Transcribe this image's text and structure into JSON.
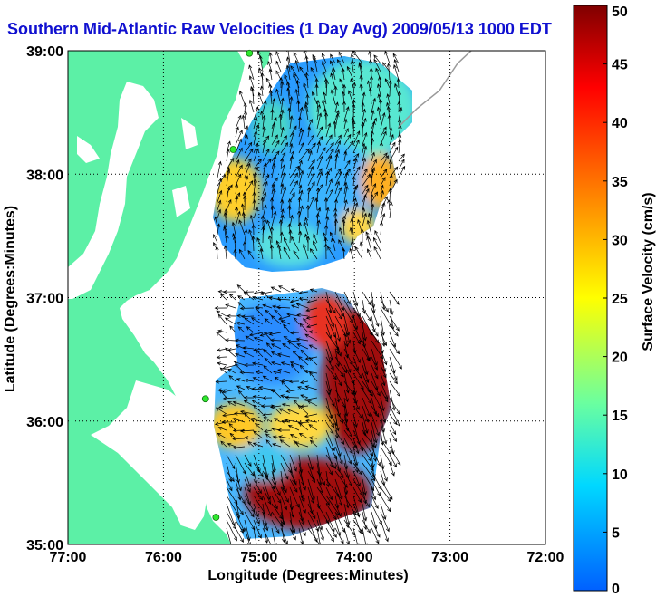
{
  "title": "Southern Mid-Atlantic Raw Velocities (1 Day Avg) 2009/05/13 1000 EDT",
  "map": {
    "xlabel": "Longitude (Degrees:Minutes)",
    "ylabel": "Latitude (Degrees:Minutes)",
    "xlim": [
      -77,
      -72
    ],
    "ylim": [
      35,
      39
    ],
    "x_ticks": [
      {
        "value": -77,
        "label": "77:00"
      },
      {
        "value": -76,
        "label": "76:00"
      },
      {
        "value": -75,
        "label": "75:00"
      },
      {
        "value": -74,
        "label": "74:00"
      },
      {
        "value": -73,
        "label": "73:00"
      },
      {
        "value": -72,
        "label": "72:00"
      }
    ],
    "y_ticks": [
      {
        "value": 35,
        "label": "35:00"
      },
      {
        "value": 36,
        "label": "36:00"
      },
      {
        "value": 37,
        "label": "37:00"
      },
      {
        "value": 38,
        "label": "38:00"
      },
      {
        "value": 39,
        "label": "39:00"
      }
    ],
    "grid": true,
    "land_color": "#5cf0a6",
    "coastline_color": "#9a9a9a",
    "station_color": "#2ee82e",
    "stations": [
      {
        "lon": -75.1,
        "lat": 38.98
      },
      {
        "lon": -75.27,
        "lat": 38.2
      },
      {
        "lon": -75.56,
        "lat": 36.18
      },
      {
        "lon": -75.45,
        "lat": 35.22
      }
    ]
  },
  "colorbar": {
    "label": "Surface Velocity (cm/s)",
    "min": 0,
    "max": 50,
    "ticks": [
      {
        "value": 0,
        "label": "0"
      },
      {
        "value": 5,
        "label": "5"
      },
      {
        "value": 10,
        "label": "10"
      },
      {
        "value": 15,
        "label": "15"
      },
      {
        "value": 20,
        "label": "20"
      },
      {
        "value": 25,
        "label": "25"
      },
      {
        "value": 30,
        "label": "30"
      },
      {
        "value": 35,
        "label": "35"
      },
      {
        "value": 40,
        "label": "40"
      },
      {
        "value": 45,
        "label": "45"
      },
      {
        "value": 50,
        "label": "50"
      }
    ],
    "colormap": [
      "#0060ff",
      "#00d8ff",
      "#6affa0",
      "#ffff00",
      "#ff8000",
      "#ff0000",
      "#800000"
    ]
  }
}
